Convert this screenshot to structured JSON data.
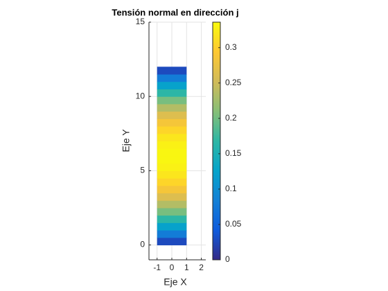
{
  "chart_data": {
    "type": "heatmap",
    "title": "Tensión normal en dirección j",
    "xlabel": "Eje X",
    "ylabel": "Eje Y",
    "xlim": [
      -1.55,
      2.3
    ],
    "xticks": [
      -1,
      0,
      1,
      2
    ],
    "ylim": [
      -1,
      15
    ],
    "yticks": [
      0,
      5,
      10,
      15
    ],
    "grid": true,
    "x_edges": [
      -1,
      1
    ],
    "y_edges": [
      0,
      0.5,
      1,
      1.5,
      2,
      2.5,
      3,
      3.5,
      4,
      4.5,
      5,
      5.5,
      6,
      6.5,
      7,
      7.5,
      8,
      8.5,
      9,
      9.5,
      10,
      10.5,
      11,
      11.5,
      12
    ],
    "values": [
      0.027,
      0.078,
      0.124,
      0.166,
      0.203,
      0.235,
      0.263,
      0.286,
      0.305,
      0.319,
      0.328,
      0.332,
      0.332,
      0.328,
      0.319,
      0.305,
      0.286,
      0.263,
      0.235,
      0.203,
      0.166,
      0.124,
      0.078,
      0.027
    ],
    "clim": [
      0,
      0.336
    ],
    "cticks": [
      0,
      0.05,
      0.1,
      0.15,
      0.2,
      0.25,
      0.3
    ],
    "colormap": [
      "#352a87",
      "#0f5cdd",
      "#1481d6",
      "#06a4ca",
      "#2eb7a4",
      "#87bf77",
      "#d1bb59",
      "#fec832",
      "#f9fb0e"
    ]
  }
}
